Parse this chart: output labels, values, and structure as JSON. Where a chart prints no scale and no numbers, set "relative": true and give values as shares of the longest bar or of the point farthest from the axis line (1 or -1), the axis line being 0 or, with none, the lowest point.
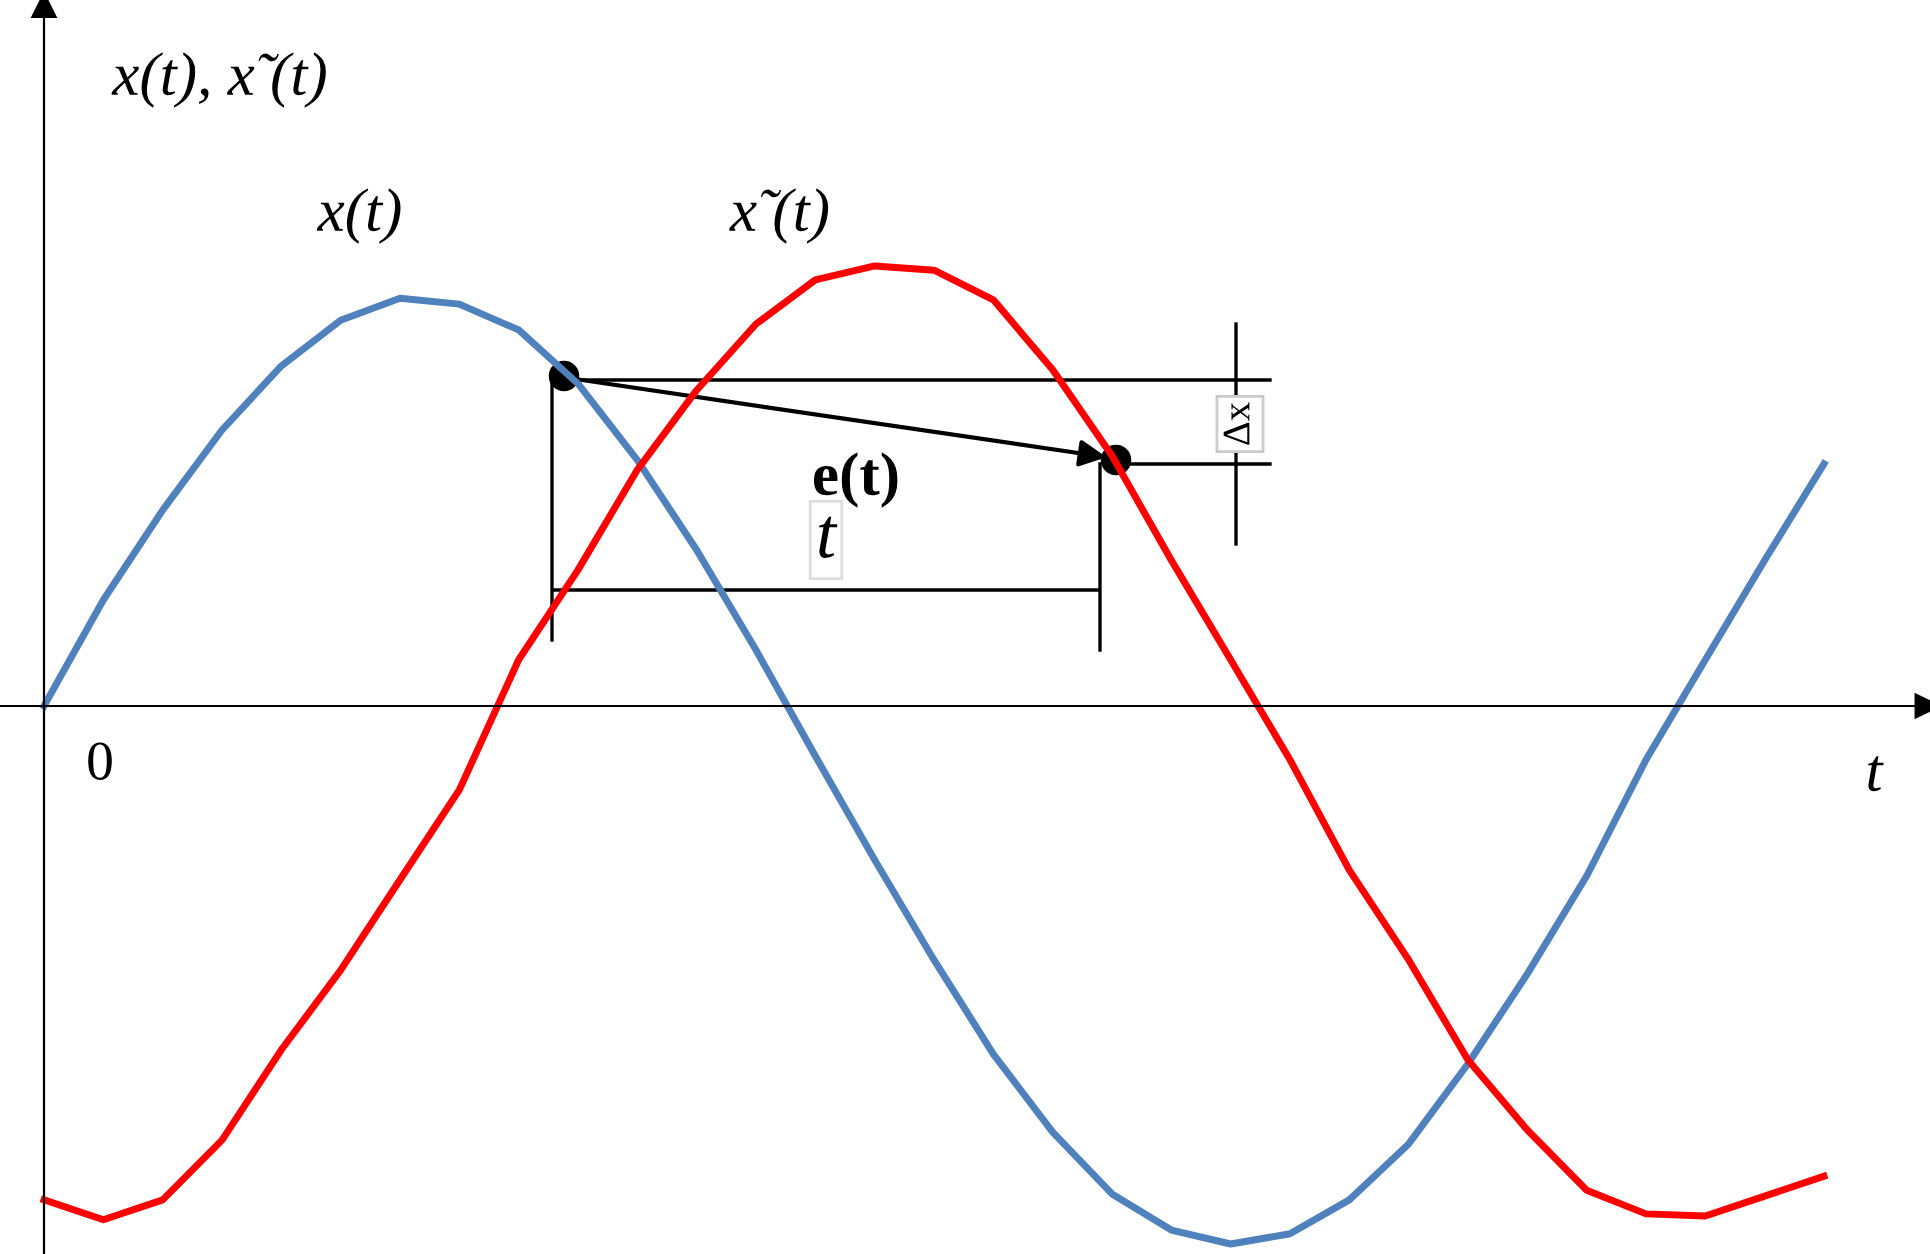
{
  "chart_data": {
    "type": "line",
    "relative": true,
    "xlabel": "t",
    "ylabel": "x(t), x̃ (t)",
    "categories": [
      null,
      null,
      null,
      null,
      null,
      null,
      null,
      null,
      null,
      null,
      null,
      null,
      null,
      null,
      null,
      null,
      null,
      null,
      null,
      null,
      null,
      null,
      null,
      null,
      null,
      null,
      null,
      null,
      null,
      null,
      null
    ],
    "series": [
      {
        "name": "x(t)",
        "color": "#4f81bd",
        "values": [
          0,
          0.197,
          0.364,
          0.513,
          0.632,
          0.717,
          0.758,
          0.747,
          0.699,
          0.599,
          0.457,
          0.29,
          0.104,
          -0.093,
          -0.286,
          -0.472,
          -0.647,
          -0.792,
          -0.907,
          -0.974,
          -1,
          -0.981,
          -0.918,
          -0.814,
          -0.665,
          -0.498,
          -0.316,
          -0.1,
          0.086,
          0.271,
          0.45
        ]
      },
      {
        "name": "x̃ (t)",
        "color": "#ff0000",
        "values": [
          -0.918,
          -0.955,
          -0.918,
          -0.807,
          -0.639,
          -0.491,
          -0.323,
          -0.156,
          0.086,
          0.253,
          0.439,
          0.587,
          0.71,
          0.792,
          0.818,
          0.81,
          0.755,
          0.625,
          0.465,
          0.271,
          0.086,
          -0.1,
          -0.305,
          -0.472,
          -0.658,
          -0.788,
          -0.9,
          -0.944,
          -0.948,
          -0.911,
          -0.874
        ]
      }
    ],
    "annotations": [
      "e(t)",
      "t",
      "Δx",
      "0"
    ],
    "line_style": "solid",
    "marker": "none",
    "legend": false
  }
}
